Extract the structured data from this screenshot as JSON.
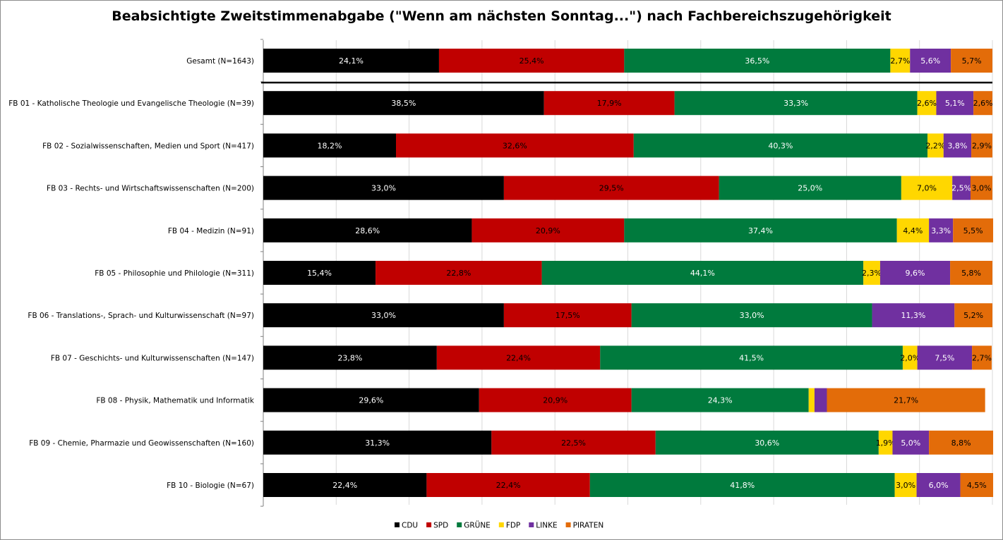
{
  "chart_data": {
    "type": "bar",
    "orientation": "horizontal",
    "stacked": true,
    "title": "Beabsichtigte Zweitstimmenabgabe (\"Wenn am nächsten Sonntag...\") nach Fachbereichszugehörigkeit",
    "xlim": [
      0,
      100
    ],
    "grid": true,
    "legend_position": "bottom",
    "categories": [
      "Gesamt (N=1643)",
      "FB 01 - Katholische Theologie und Evangelische Theologie (N=39)",
      "FB 02 - Sozialwissenschaften, Medien und Sport (N=417)",
      "FB 03 - Rechts- und Wirtschaftswissenschaften (N=200)",
      "FB 04 - Medizin (N=91)",
      "FB 05 - Philosophie und Philologie (N=311)",
      "FB 06 - Translations-, Sprach- und Kulturwissenschaft (N=97)",
      "FB 07 - Geschichts- und Kulturwissenschaften (N=147)",
      "FB 08 - Physik, Mathematik und Informatik",
      "FB 09 - Chemie, Pharmazie und Geowissenschaften (N=160)",
      "FB 10 - Biologie (N=67)"
    ],
    "series": [
      {
        "name": "CDU",
        "color": "#000000",
        "label_color": "#ffffff",
        "values": [
          24.1,
          38.5,
          18.2,
          33.0,
          28.6,
          15.4,
          33.0,
          23.8,
          29.6,
          31.3,
          22.4
        ],
        "labels": [
          "24,1%",
          "38,5%",
          "18,2%",
          "33,0%",
          "28,6%",
          "15,4%",
          "33,0%",
          "23,8%",
          "29,6%",
          "31,3%",
          "22,4%"
        ]
      },
      {
        "name": "SPD",
        "color": "#c00000",
        "label_color": "#000000",
        "values": [
          25.4,
          17.9,
          32.6,
          29.5,
          20.9,
          22.8,
          17.5,
          22.4,
          20.9,
          22.5,
          22.4
        ],
        "labels": [
          "25,4%",
          "17,9%",
          "32,6%",
          "29,5%",
          "20,9%",
          "22,8%",
          "17,5%",
          "22,4%",
          "20,9%",
          "22,5%",
          "22,4%"
        ]
      },
      {
        "name": "GRÜNE",
        "color": "#007a3d",
        "label_color": "#ffffff",
        "values": [
          36.5,
          33.3,
          40.3,
          25.0,
          37.4,
          44.1,
          33.0,
          41.5,
          24.3,
          30.6,
          41.8
        ],
        "labels": [
          "36,5%",
          "33,3%",
          "40,3%",
          "25,0%",
          "37,4%",
          "44,1%",
          "33,0%",
          "41,5%",
          "24,3%",
          "30,6%",
          "41,8%"
        ]
      },
      {
        "name": "FDP",
        "color": "#ffd700",
        "label_color": "#000000",
        "values": [
          2.7,
          2.6,
          2.2,
          7.0,
          4.4,
          2.3,
          0.0,
          2.0,
          0.8,
          1.9,
          3.0
        ],
        "labels": [
          "2,7%",
          "2,6%",
          "2,2%",
          "7,0%",
          "4,4%",
          "2,3%",
          "",
          "2,0%",
          "",
          "1,9%",
          "3,0%"
        ]
      },
      {
        "name": "LINKE",
        "color": "#7030a0",
        "label_color": "#ffffff",
        "values": [
          5.6,
          5.1,
          3.8,
          2.5,
          3.3,
          9.6,
          11.3,
          7.5,
          1.7,
          5.0,
          6.0
        ],
        "labels": [
          "5,6%",
          "5,1%",
          "3,8%",
          "2,5%",
          "3,3%",
          "9,6%",
          "11,3%",
          "7,5%",
          "",
          "5,0%",
          "6,0%"
        ]
      },
      {
        "name": "PIRATEN",
        "color": "#e36c09",
        "label_color": "#000000",
        "values": [
          5.7,
          2.6,
          2.9,
          3.0,
          5.5,
          5.8,
          5.2,
          2.7,
          21.7,
          8.8,
          4.5
        ],
        "labels": [
          "5,7%",
          "2,6%",
          "2,9%",
          "3,0%",
          "5,5%",
          "5,8%",
          "5,2%",
          "2,7%",
          "21,7%",
          "8,8%",
          "4,5%"
        ]
      }
    ]
  }
}
